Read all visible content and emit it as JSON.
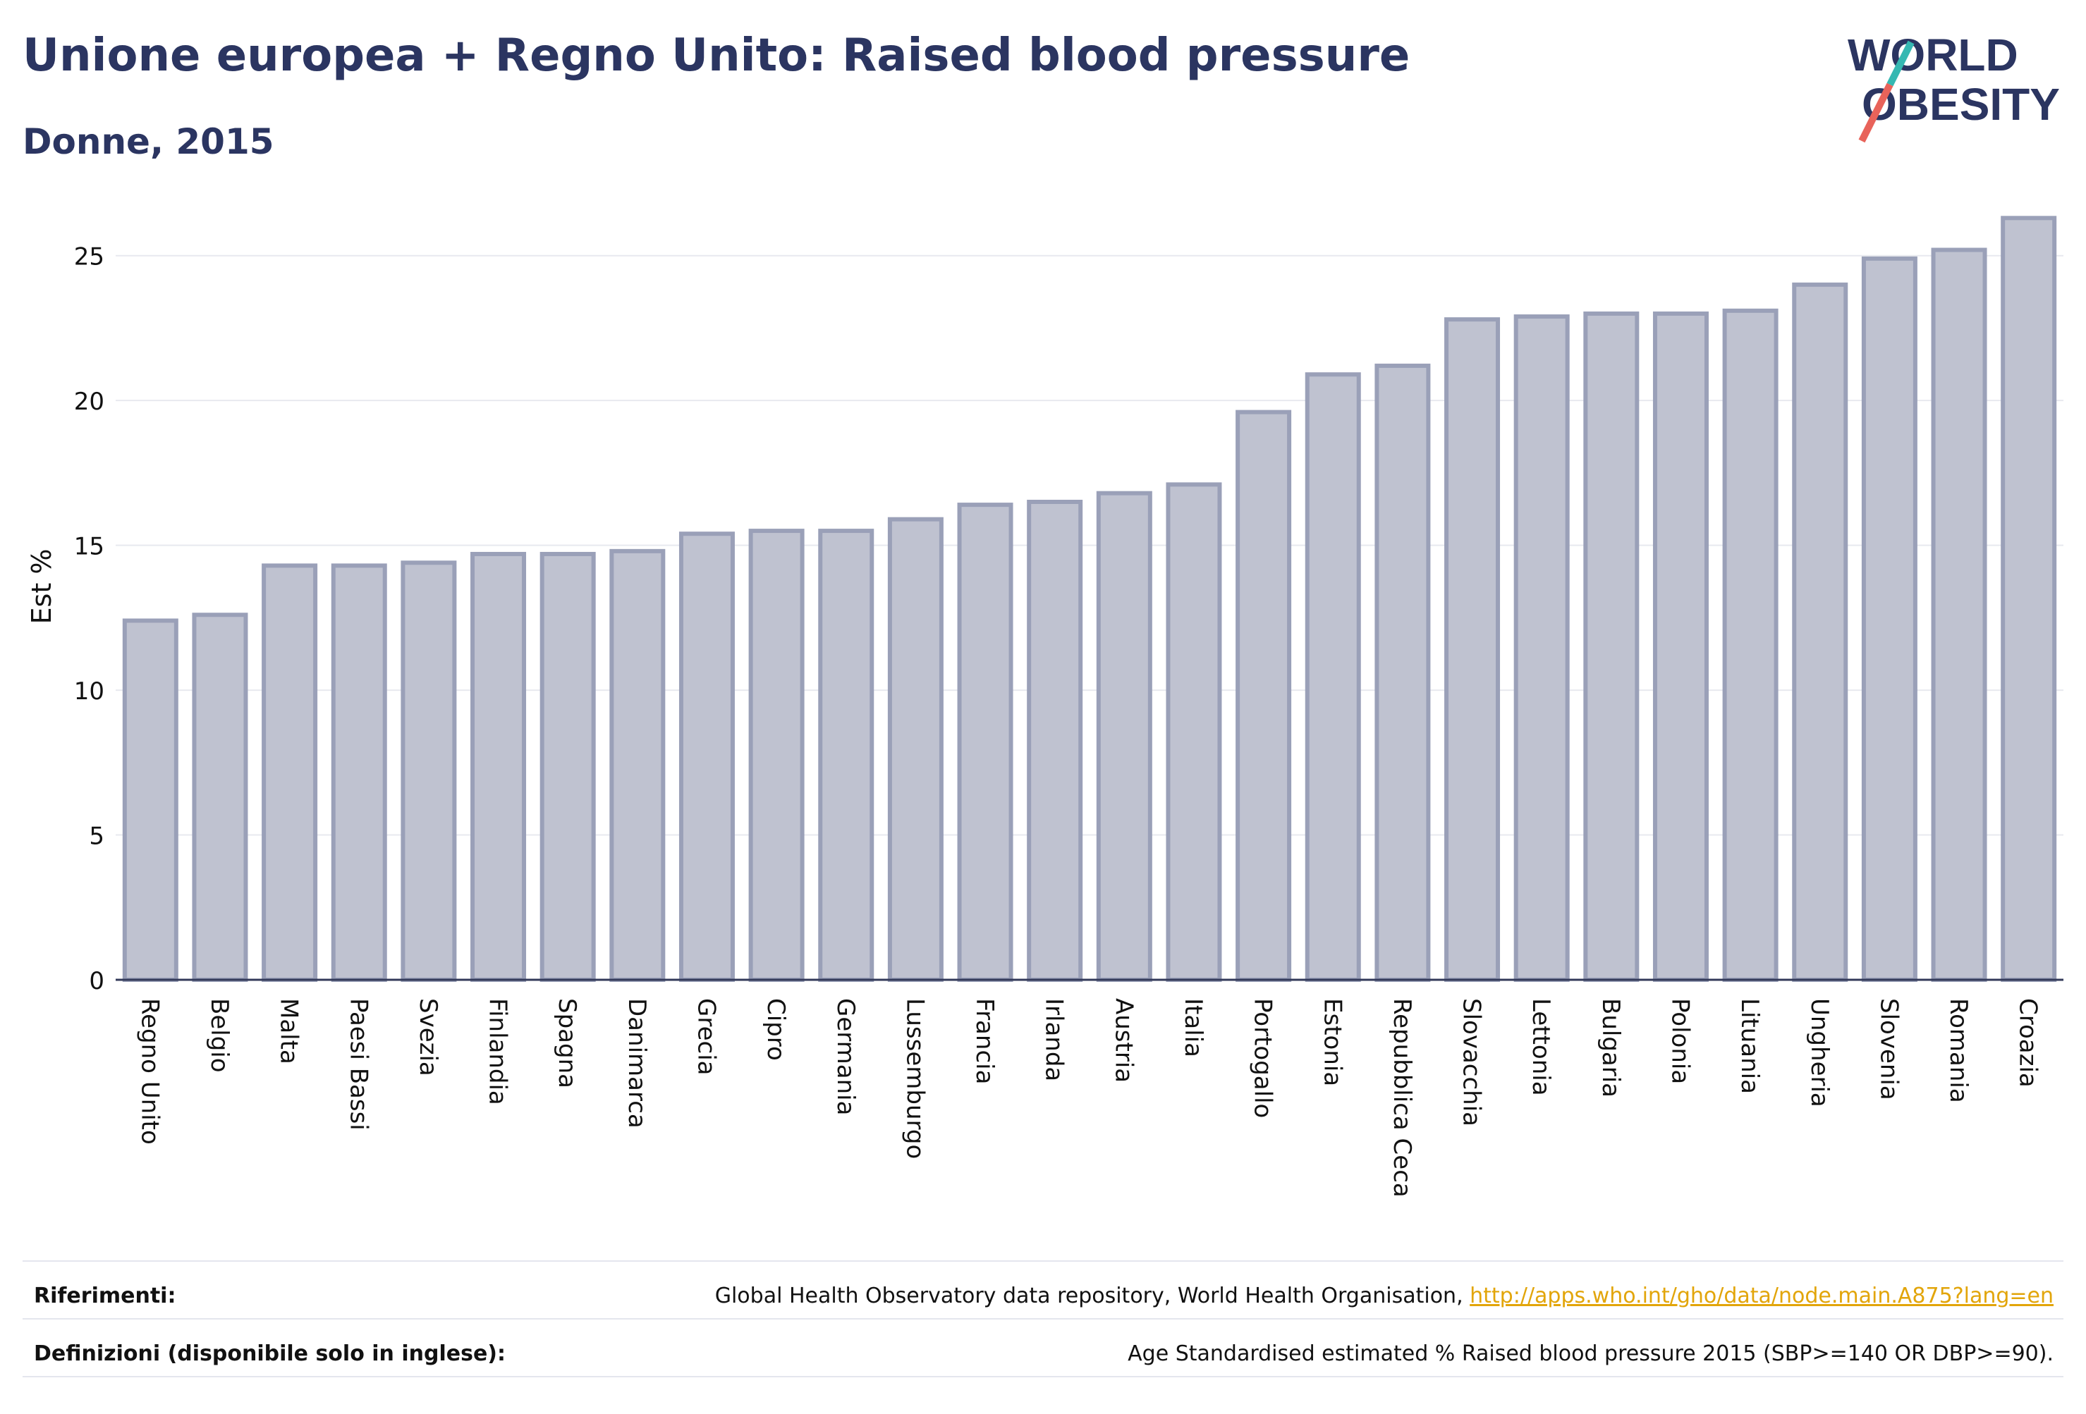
{
  "header": {
    "title": "Unione europea + Regno Unito: Raised blood pressure",
    "subtitle": "Donne, 2015"
  },
  "logo": {
    "line1": "WORLD",
    "line2": "OBESITY",
    "accent_colors": [
      "#35b8b2",
      "#e8635a"
    ]
  },
  "colors": {
    "bar_fill": "#bfc2d0",
    "bar_stroke": "#9aa0b8",
    "title": "#2b3561",
    "grid": "#e8e9ef"
  },
  "chart_data": {
    "type": "bar",
    "title": "Unione europea + Regno Unito: Raised blood pressure",
    "subtitle": "Donne, 2015",
    "xlabel": "",
    "ylabel": "Est %",
    "ylim": [
      0,
      27.5
    ],
    "yticks": [
      0,
      5,
      10,
      15,
      20,
      25
    ],
    "grid": true,
    "categories": [
      "Regno Unito",
      "Belgio",
      "Malta",
      "Paesi Bassi",
      "Svezia",
      "Finlandia",
      "Spagna",
      "Danimarca",
      "Grecia",
      "Cipro",
      "Germania",
      "Lussemburgo",
      "Francia",
      "Irlanda",
      "Austria",
      "Italia",
      "Portogallo",
      "Estonia",
      "Repubblica Ceca",
      "Slovacchia",
      "Lettonia",
      "Bulgaria",
      "Polonia",
      "Lituania",
      "Ungheria",
      "Slovenia",
      "Romania",
      "Croazia"
    ],
    "values": [
      12.4,
      12.6,
      14.3,
      14.3,
      14.4,
      14.7,
      14.7,
      14.8,
      15.4,
      15.5,
      15.5,
      15.9,
      16.4,
      16.5,
      16.8,
      17.1,
      19.6,
      20.9,
      21.2,
      22.8,
      22.9,
      23.0,
      23.0,
      23.1,
      24.0,
      24.9,
      25.2,
      26.3
    ]
  },
  "footer": {
    "references_label": "Riferimenti:",
    "references_text": "Global Health Observatory data repository, World Health Organisation, ",
    "references_link": "http://apps.who.int/gho/data/node.main.A875?lang=en",
    "definitions_label": "Definizioni (disponibile solo in inglese):",
    "definitions_text": "Age Standardised estimated % Raised blood pressure 2015 (SBP>=140 OR DBP>=90)."
  }
}
